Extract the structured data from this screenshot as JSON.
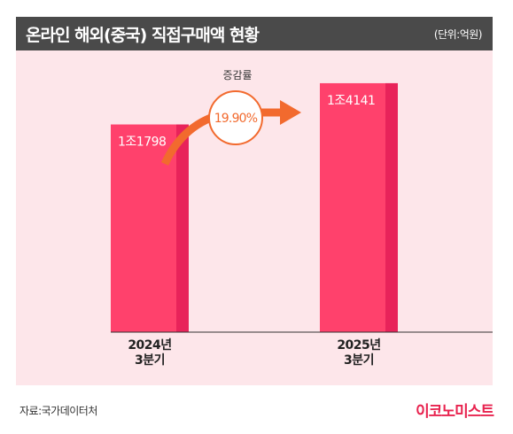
{
  "header": {
    "title": "온라인 해외(중국) 직접구매액 현황",
    "unit": "(단위:억원)"
  },
  "footer": {
    "source": "자료:국가데이터처",
    "brand": "이코노미스트"
  },
  "colors": {
    "bar": "#ff416c",
    "bar_shade": "#e8235a",
    "arrow": "#f26a2e",
    "plot_bg": "#fde6ea",
    "header_bg": "#4a4a4a"
  },
  "chart_data": {
    "type": "bar",
    "categories": [
      [
        "2024년",
        "3분기"
      ],
      [
        "2025년",
        "3분기"
      ]
    ],
    "values": [
      11798,
      14141
    ],
    "value_labels": [
      "1조1798",
      "1조4141"
    ],
    "ylim": [
      0,
      16000
    ],
    "annotation": {
      "label": "증감률",
      "value": "19.90%"
    },
    "grid": false
  }
}
